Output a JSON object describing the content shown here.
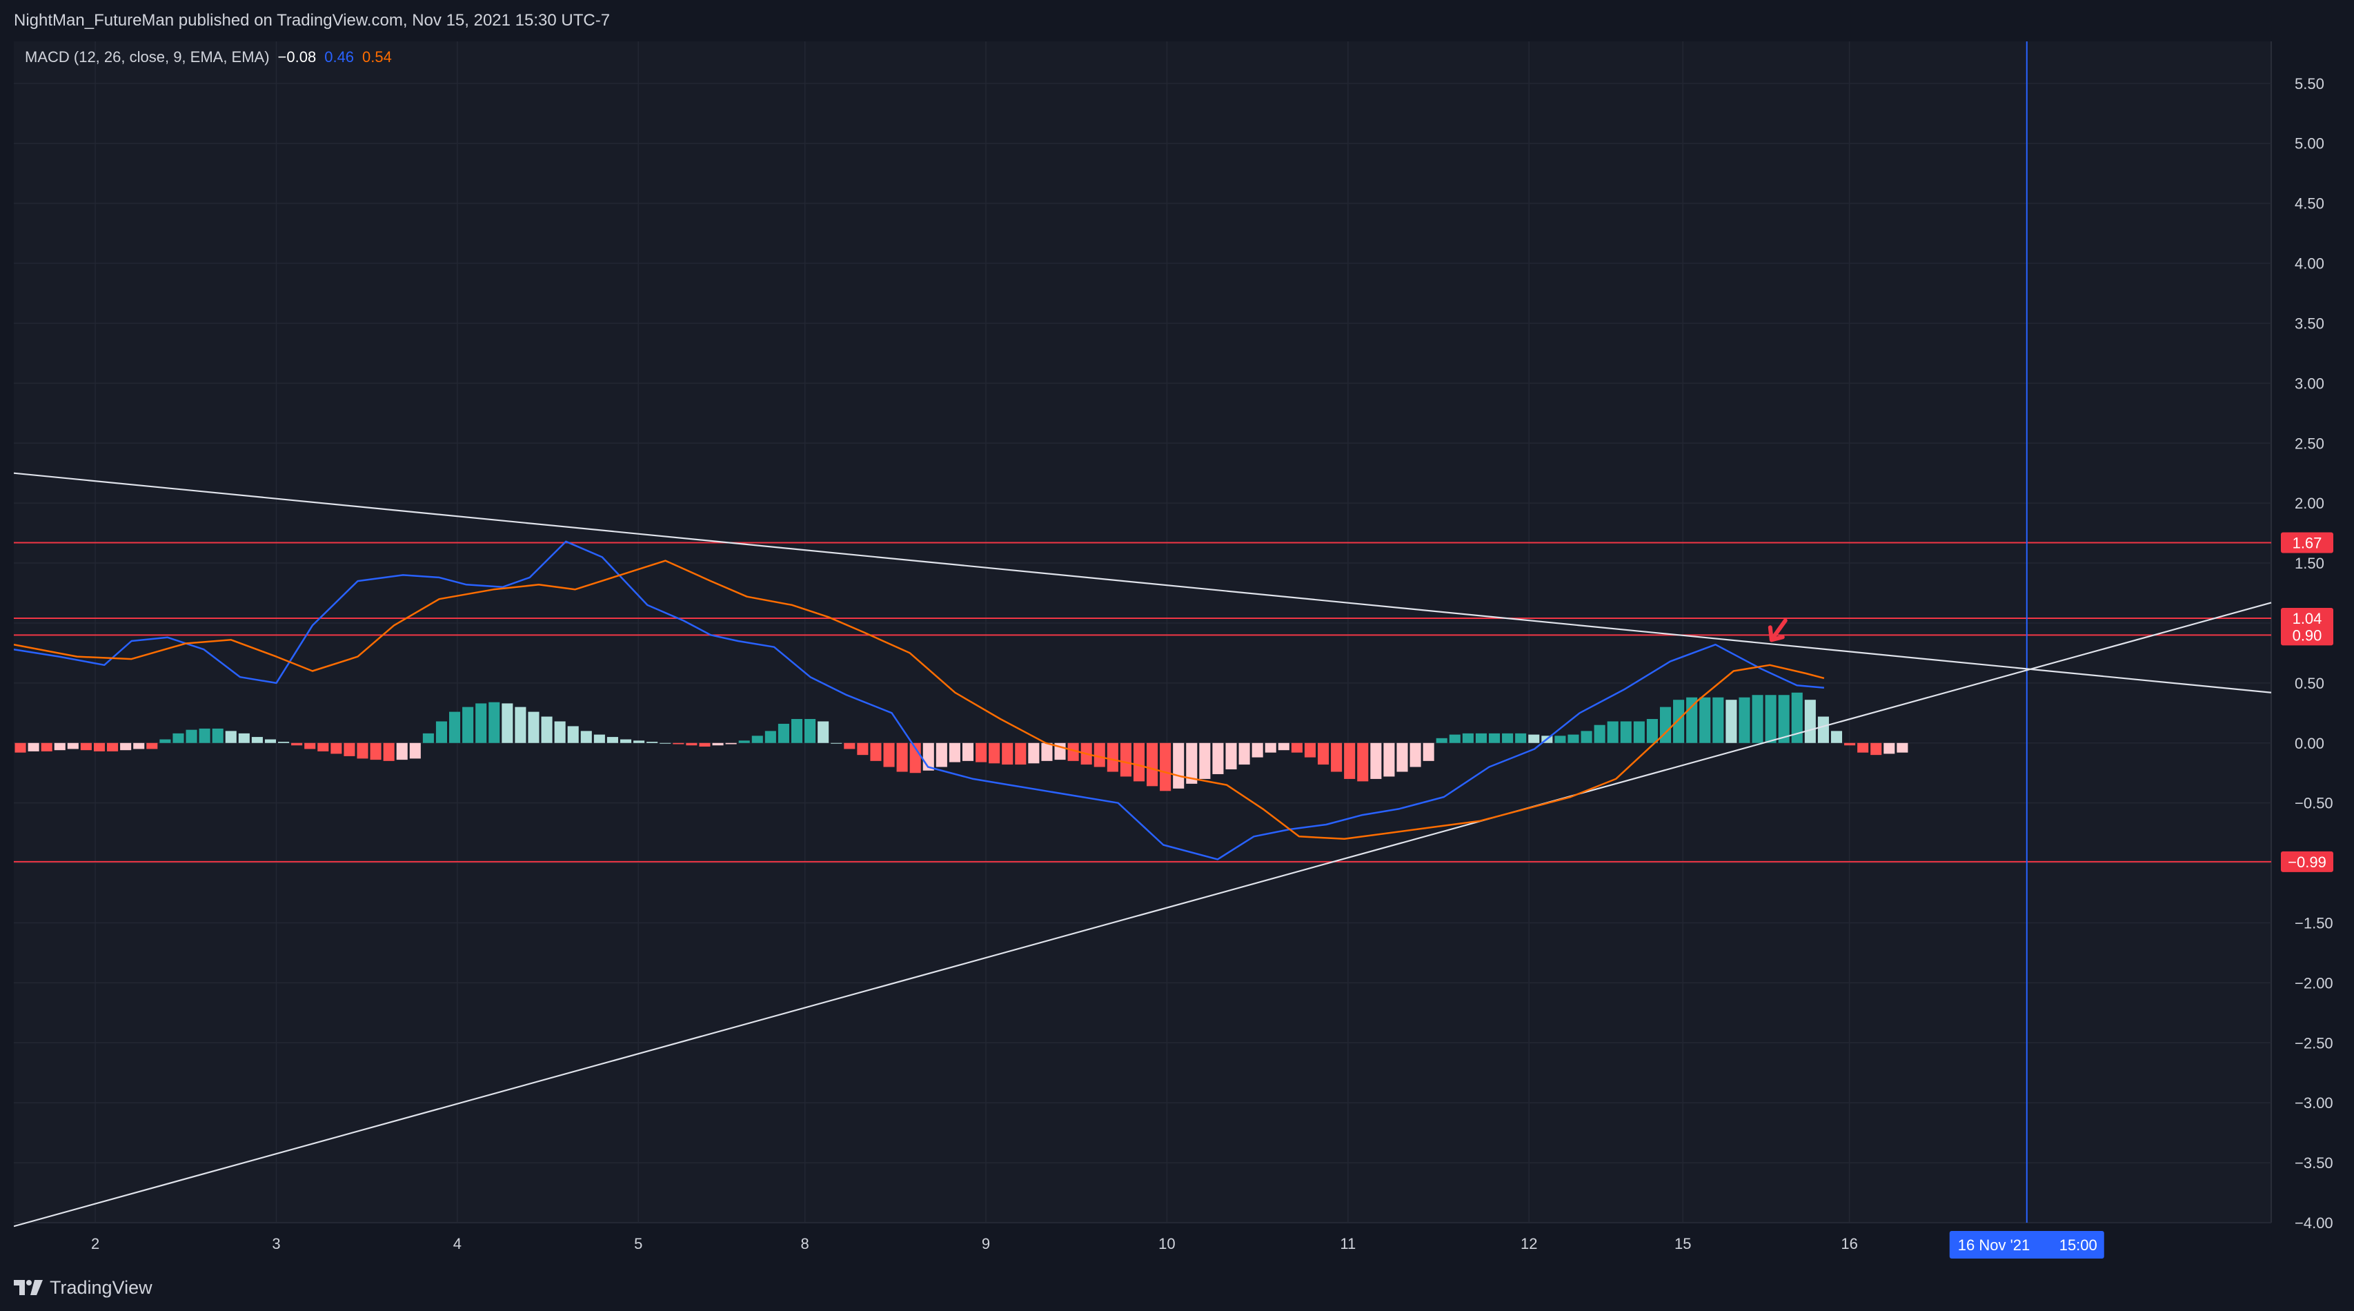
{
  "header": {
    "publisher_text": "NightMan_FutureMan published on TradingView.com, Nov 15, 2021 15:30 UTC-7"
  },
  "indicator": {
    "label": "MACD (12, 26, close, 9, EMA, EMA)",
    "histogram_value": "−0.08",
    "macd_value": "0.46",
    "signal_value": "0.54",
    "histogram_color": "#ffffff",
    "macd_color": "#2962ff",
    "signal_color": "#ff6d00"
  },
  "footer": {
    "brand": "TradingView",
    "logo_icon": "tradingview-logo-icon"
  },
  "crosshair": {
    "date_label": "16 Nov '21",
    "time_label": "15:00",
    "label_color": "#2962ff"
  },
  "chart_data": {
    "type": "line",
    "ylim": [
      -4.0,
      5.85
    ],
    "y_ticks": [
      "5.50",
      "5.00",
      "4.50",
      "4.00",
      "3.50",
      "3.00",
      "2.50",
      "2.00",
      "1.50",
      "1.00",
      "0.50",
      "0.00",
      "−0.50",
      "−1.00",
      "−1.50",
      "−2.00",
      "−2.50",
      "−3.00",
      "−3.50",
      "−4.00"
    ],
    "x_ticks": [
      {
        "label": "2",
        "x": 0.5
      },
      {
        "label": "3",
        "x": 1.5
      },
      {
        "label": "4",
        "x": 2.5
      },
      {
        "label": "5",
        "x": 3.5
      },
      {
        "label": "8",
        "x": 4.42
      },
      {
        "label": "9",
        "x": 5.42
      },
      {
        "label": "10",
        "x": 6.42
      },
      {
        "label": "11",
        "x": 7.42
      },
      {
        "label": "12",
        "x": 8.42
      },
      {
        "label": "15",
        "x": 9.27
      },
      {
        "label": "16",
        "x": 10.19
      }
    ],
    "xlim": [
      0.05,
      12.52
    ],
    "crosshair_x": 11.17,
    "horizontal_levels": [
      {
        "value": 1.67,
        "label": "1.67",
        "color": "#f23645"
      },
      {
        "value": 1.04,
        "label": "1.04",
        "color": "#f23645"
      },
      {
        "value": 0.9,
        "label": "0.90",
        "color": "#f23645"
      },
      {
        "value": -0.99,
        "label": "−0.99",
        "color": "#f23645"
      }
    ],
    "trendlines": [
      {
        "name": "",
        "x1": 0.05,
        "y1": 2.25,
        "x2": 12.52,
        "y2": 0.42
      },
      {
        "name": "",
        "x1": 0.05,
        "y1": -4.03,
        "x2": 12.52,
        "y2": 1.17
      }
    ],
    "annotation_arrow": {
      "x": 9.76,
      "y": 0.86,
      "color": "#f23645"
    },
    "series": [
      {
        "name": "MACD",
        "color": "#2962ff",
        "x": [
          0.05,
          0.3,
          0.55,
          0.7,
          0.9,
          1.1,
          1.3,
          1.5,
          1.7,
          1.95,
          2.2,
          2.4,
          2.55,
          2.75,
          2.9,
          3.1,
          3.3,
          3.55,
          3.75,
          3.9,
          4.05,
          4.25,
          4.45,
          4.65,
          4.9,
          5.1,
          5.35,
          5.55,
          5.75,
          5.95,
          6.15,
          6.4,
          6.7,
          6.9,
          7.1,
          7.3,
          7.5,
          7.7,
          7.95,
          8.2,
          8.45,
          8.7,
          8.95,
          9.2,
          9.45,
          9.7,
          9.9,
          10.05
        ],
        "y": [
          0.78,
          0.72,
          0.65,
          0.85,
          0.88,
          0.78,
          0.55,
          0.5,
          0.98,
          1.35,
          1.4,
          1.38,
          1.32,
          1.3,
          1.38,
          1.68,
          1.55,
          1.15,
          1.02,
          0.9,
          0.85,
          0.8,
          0.55,
          0.4,
          0.25,
          -0.2,
          -0.3,
          -0.35,
          -0.4,
          -0.45,
          -0.5,
          -0.85,
          -0.97,
          -0.78,
          -0.72,
          -0.68,
          -0.6,
          -0.55,
          -0.45,
          -0.2,
          -0.05,
          0.25,
          0.45,
          0.68,
          0.82,
          0.62,
          0.48,
          0.46
        ]
      },
      {
        "name": "Signal",
        "color": "#ff6d00",
        "x": [
          0.05,
          0.4,
          0.7,
          1.0,
          1.25,
          1.5,
          1.7,
          1.95,
          2.15,
          2.4,
          2.7,
          2.95,
          3.15,
          3.4,
          3.65,
          3.9,
          4.1,
          4.35,
          4.55,
          4.75,
          5.0,
          5.25,
          5.5,
          5.75,
          6.0,
          6.25,
          6.5,
          6.75,
          6.95,
          7.15,
          7.4,
          7.65,
          7.9,
          8.15,
          8.4,
          8.65,
          8.9,
          9.15,
          9.35,
          9.55,
          9.75,
          9.95,
          10.05
        ],
        "y": [
          0.82,
          0.72,
          0.7,
          0.83,
          0.86,
          0.72,
          0.6,
          0.72,
          0.98,
          1.2,
          1.28,
          1.32,
          1.28,
          1.4,
          1.52,
          1.35,
          1.22,
          1.15,
          1.05,
          0.92,
          0.75,
          0.42,
          0.2,
          0.0,
          -0.1,
          -0.18,
          -0.28,
          -0.35,
          -0.55,
          -0.78,
          -0.8,
          -0.75,
          -0.7,
          -0.65,
          -0.55,
          -0.45,
          -0.3,
          0.05,
          0.35,
          0.6,
          0.65,
          0.58,
          0.54
        ]
      }
    ],
    "histogram": {
      "x_start": 0.05,
      "x_step": 0.0727,
      "positive_strong_color": "#26a69a",
      "positive_weak_color": "#b2dfdb",
      "negative_strong_color": "#ff5252",
      "negative_weak_color": "#ffcdd2",
      "values": [
        -0.08,
        -0.07,
        -0.07,
        -0.06,
        -0.05,
        -0.06,
        -0.07,
        -0.07,
        -0.06,
        -0.05,
        -0.05,
        0.03,
        0.08,
        0.11,
        0.12,
        0.12,
        0.1,
        0.08,
        0.05,
        0.03,
        0.01,
        -0.02,
        -0.05,
        -0.07,
        -0.09,
        -0.11,
        -0.13,
        -0.14,
        -0.15,
        -0.14,
        -0.13,
        0.08,
        0.18,
        0.26,
        0.3,
        0.33,
        0.34,
        0.33,
        0.3,
        0.26,
        0.22,
        0.18,
        0.14,
        0.1,
        0.07,
        0.05,
        0.03,
        0.02,
        0.01,
        0.0,
        -0.01,
        -0.02,
        -0.03,
        -0.02,
        -0.01,
        0.02,
        0.06,
        0.1,
        0.16,
        0.2,
        0.2,
        0.18,
        0.0,
        -0.05,
        -0.1,
        -0.15,
        -0.2,
        -0.24,
        -0.25,
        -0.23,
        -0.2,
        -0.16,
        -0.15,
        -0.16,
        -0.17,
        -0.18,
        -0.18,
        -0.17,
        -0.15,
        -0.14,
        -0.15,
        -0.18,
        -0.2,
        -0.24,
        -0.28,
        -0.32,
        -0.36,
        -0.4,
        -0.38,
        -0.34,
        -0.3,
        -0.26,
        -0.22,
        -0.18,
        -0.12,
        -0.08,
        -0.06,
        -0.08,
        -0.12,
        -0.18,
        -0.24,
        -0.3,
        -0.32,
        -0.3,
        -0.28,
        -0.24,
        -0.2,
        -0.15,
        0.04,
        0.07,
        0.08,
        0.08,
        0.08,
        0.08,
        0.08,
        0.07,
        0.06,
        0.06,
        0.07,
        0.1,
        0.15,
        0.18,
        0.18,
        0.18,
        0.2,
        0.3,
        0.36,
        0.38,
        0.38,
        0.38,
        0.36,
        0.38,
        0.4,
        0.4,
        0.4,
        0.42,
        0.36,
        0.22,
        0.1,
        -0.02,
        -0.08,
        -0.1,
        -0.09,
        -0.08
      ]
    }
  }
}
